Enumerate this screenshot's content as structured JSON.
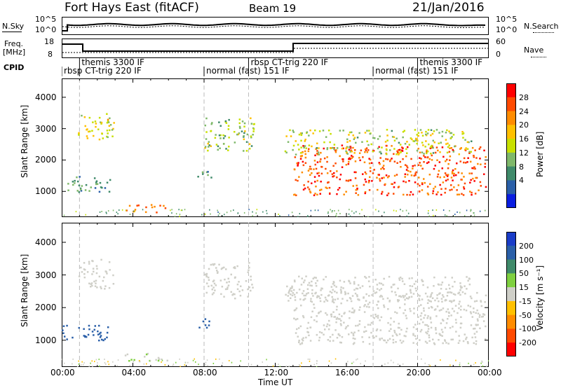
{
  "header": {
    "station": "Fort Hays East (fitACF)",
    "beam": "Beam 19",
    "date": "21/Jan/2016"
  },
  "noise_panel": {
    "left_label": "N.Sky",
    "right_label": "N.Search",
    "left_ticks": [
      "10^5",
      "10^0"
    ],
    "right_ticks": [
      "10^5",
      "10^0"
    ]
  },
  "freq_panel": {
    "left_label_1": "Freq.",
    "left_label_2": "[MHz]",
    "right_label": "Nave",
    "left_ticks": [
      "18",
      "8"
    ],
    "right_ticks": [
      "60",
      "0"
    ]
  },
  "cpid": {
    "label": "CPID",
    "segments": [
      {
        "name": "themis 3300 IF",
        "row": 1,
        "start_h": 1.0,
        "end_h": 8.0
      },
      {
        "name": "rbsp CT-trig 220 IF",
        "row": 2,
        "start_h": 0.0,
        "end_h": 8.0
      },
      {
        "name": "normal (fast) 151 IF",
        "row": 2,
        "start_h": 8.0,
        "end_h": 10.5
      },
      {
        "name": "rbsp CT-trig 220 IF",
        "row": 1,
        "start_h": 10.5,
        "end_h": 17.5
      },
      {
        "name": "normal (fast) 151 IF",
        "row": 2,
        "start_h": 17.5,
        "end_h": 20.0
      },
      {
        "name": "themis 3300 IF",
        "row": 1,
        "start_h": 20.0,
        "end_h": 24.0
      }
    ]
  },
  "power_panel": {
    "ylabel": "Slant Range [km]",
    "colorbar_label": "Power [dB]",
    "colorbar_ticks": [
      "28",
      "24",
      "20",
      "16",
      "12",
      "8",
      "4"
    ],
    "colors": [
      "#ff0000",
      "#ff4a00",
      "#ff8c00",
      "#ffc000",
      "#c8e000",
      "#7fb86a",
      "#3f8a6a",
      "#2a5fa8",
      "#0a1ee0"
    ]
  },
  "velocity_panel": {
    "ylabel": "Slant Range [km]",
    "colorbar_label": "Velocity [m s⁻¹]",
    "colorbar_ticks": [
      "200",
      "100",
      "50",
      "15",
      "-15",
      "-50",
      "-100",
      "-200"
    ],
    "colors": [
      "#1a3dc8",
      "#2a5fa8",
      "#3f8a6a",
      "#7fd040",
      "#cfcfc8",
      "#ffc000",
      "#ff8c00",
      "#ff4a00",
      "#ff0000"
    ]
  },
  "yaxis_ticks": [
    "4000",
    "3000",
    "2000",
    "1000"
  ],
  "xaxis": {
    "label": "Time UT",
    "ticks": [
      "00:00",
      "04:00",
      "08:00",
      "12:00",
      "16:00",
      "20:00",
      "00:00"
    ]
  },
  "chart_data": {
    "type": "heatmap",
    "title": "Fort Hays East (fitACF)",
    "xlabel": "Time UT",
    "ylabel": "Slant Range [km]",
    "xlim_hours": [
      0,
      24
    ],
    "ylim_km": [
      180,
      4600
    ],
    "power_range_db": [
      0,
      30
    ],
    "velocity_range_ms": [
      -250,
      250
    ],
    "scatter_regions": [
      {
        "t0": 0.9,
        "t1": 2.9,
        "r0": 2600,
        "r1": 3500,
        "power": 16,
        "velocity": 0
      },
      {
        "t0": 0.0,
        "t1": 2.7,
        "r0": 1000,
        "r1": 1500,
        "power": 8,
        "velocity": 180
      },
      {
        "t0": 3.5,
        "t1": 5.9,
        "r0": 350,
        "r1": 620,
        "power": 24,
        "velocity": 30
      },
      {
        "t0": 8.0,
        "t1": 10.8,
        "r0": 2300,
        "r1": 3400,
        "power": 13,
        "velocity": 0
      },
      {
        "t0": 7.6,
        "t1": 8.5,
        "r0": 1400,
        "r1": 1700,
        "power": 9,
        "velocity": 200
      },
      {
        "t0": 13.0,
        "t1": 23.8,
        "r0": 900,
        "r1": 2500,
        "power": 26,
        "velocity": -5
      },
      {
        "t0": 12.5,
        "t1": 23.0,
        "r0": 2200,
        "r1": 3000,
        "power": 14,
        "velocity": -10
      }
    ]
  }
}
